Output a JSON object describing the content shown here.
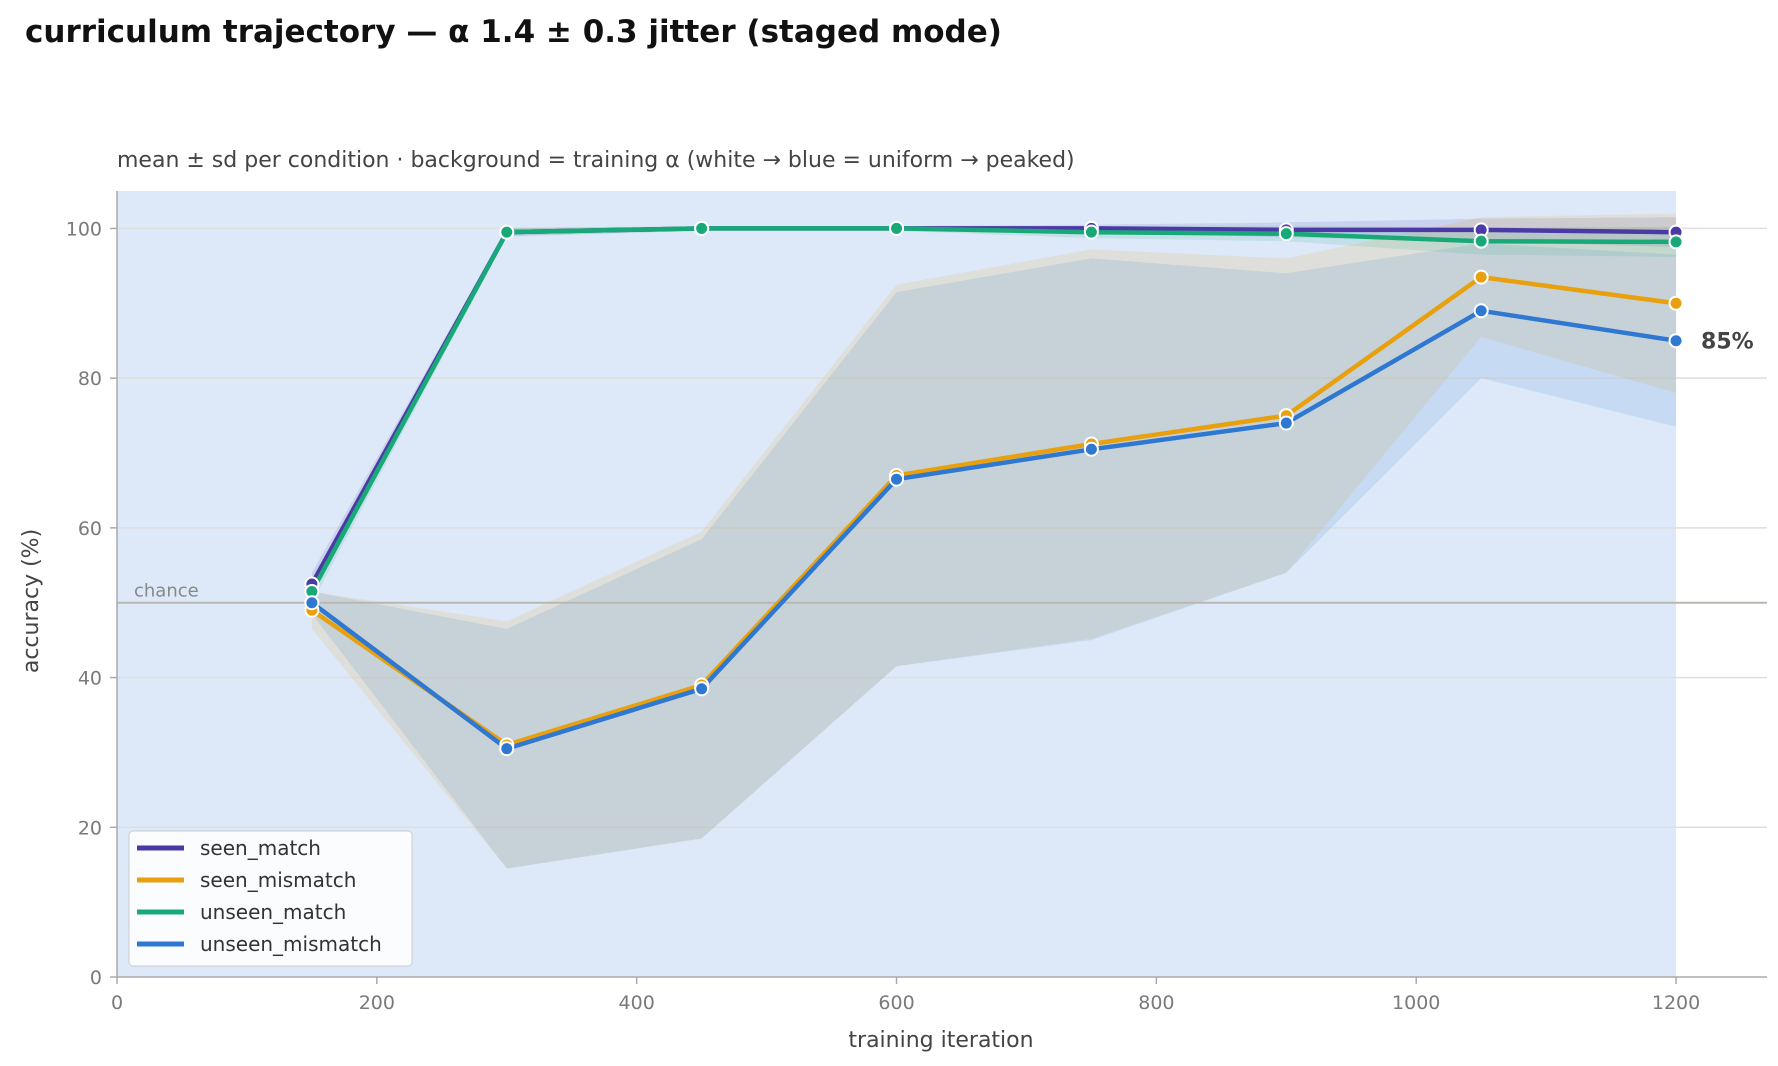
{
  "chart_data": {
    "type": "line",
    "title": "curriculum trajectory — α 1.4 ± 0.3 jitter (staged mode)",
    "subtitle": "mean ± sd per condition · background = training α (white → blue = uniform → peaked)",
    "xlabel": "training iteration",
    "ylabel": "accuracy (%)",
    "xlim": [
      0,
      1270
    ],
    "ylim": [
      0,
      105
    ],
    "xticks": [
      0,
      200,
      400,
      600,
      800,
      1000,
      1200
    ],
    "yticks": [
      0,
      20,
      40,
      60,
      80,
      100
    ],
    "grid": "horizontal",
    "background_span": [
      0,
      1200
    ],
    "chance": {
      "y": 50,
      "label": "chance"
    },
    "x": [
      150,
      300,
      450,
      600,
      750,
      900,
      1050,
      1200
    ],
    "series": [
      {
        "name": "seen_match",
        "color": "#4b3aa6",
        "values": [
          52.5,
          99.5,
          100,
          100,
          100,
          99.8,
          99.8,
          99.5
        ],
        "sd": [
          1.5,
          0.5,
          0.3,
          0.3,
          0.5,
          1.0,
          1.5,
          2.0
        ]
      },
      {
        "name": "seen_mismatch",
        "color": "#e8a00e",
        "values": [
          49,
          31,
          39,
          67,
          71.2,
          75,
          93.5,
          90
        ],
        "sd": [
          2.5,
          16.5,
          20.5,
          25.5,
          26,
          21,
          8,
          12
        ]
      },
      {
        "name": "unseen_match",
        "color": "#19a978",
        "values": [
          51.5,
          99.5,
          100,
          100,
          99.5,
          99.3,
          98.3,
          98.2
        ],
        "sd": [
          1.5,
          0.6,
          0.3,
          0.3,
          0.8,
          1.0,
          1.8,
          2.0
        ]
      },
      {
        "name": "unseen_mismatch",
        "color": "#2e78d2",
        "values": [
          50,
          30.5,
          38.5,
          66.5,
          70.5,
          74,
          89,
          85
        ],
        "sd": [
          1.5,
          16,
          20,
          25,
          25.5,
          20,
          9,
          11.5
        ]
      }
    ],
    "legend": {
      "position": "lower-left",
      "entries": [
        "seen_match",
        "seen_mismatch",
        "unseen_match",
        "unseen_mismatch"
      ]
    },
    "annotations": [
      {
        "text": "85%",
        "series": "unseen_mismatch",
        "x": 1200
      }
    ],
    "colors": {
      "background": "#dde9f8",
      "band": "#c8d2d9",
      "grid": "#dedede",
      "axis": "#aaaaaa",
      "chance_line": "#b8b8b0"
    }
  }
}
